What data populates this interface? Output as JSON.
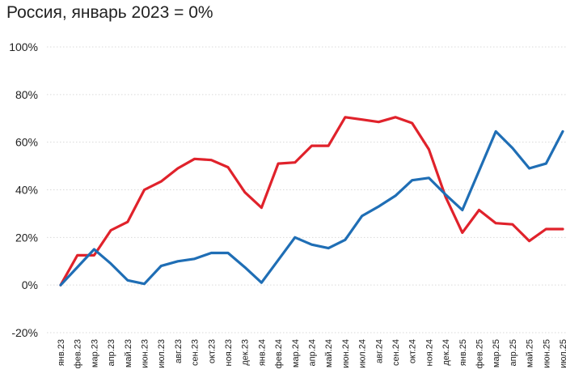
{
  "chart_data": {
    "type": "line",
    "title": "Россия, январь 2023 = 0%",
    "xlabel": "",
    "ylabel": "",
    "ylim": [
      -20,
      100
    ],
    "yticks": [
      -20,
      0,
      20,
      40,
      60,
      80,
      100
    ],
    "ytick_labels": [
      "-20%",
      "0%",
      "20%",
      "40%",
      "60%",
      "80%",
      "100%"
    ],
    "grid": true,
    "legend": "none",
    "categories": [
      "янв.23",
      "фев.23",
      "мар.23",
      "апр.23",
      "май.23",
      "июн.23",
      "июл.23",
      "авг.23",
      "сен.23",
      "окт.23",
      "ноя.23",
      "дек.23",
      "янв.24",
      "фев.24",
      "мар.24",
      "апр.24",
      "май.24",
      "июн.24",
      "июл.24",
      "авг.24",
      "сен.24",
      "окт.24",
      "ноя.24",
      "дек.24",
      "янв.25",
      "фев.25",
      "мар.25",
      "апр.25",
      "май.25",
      "июн.25",
      "июл.25"
    ],
    "series": [
      {
        "color": "#e0222b",
        "values": [
          0,
          12.5,
          12.5,
          23,
          26.5,
          40,
          43.5,
          49,
          53,
          52.5,
          49.5,
          39,
          32.5,
          51,
          51.5,
          58.5,
          58.5,
          70.5,
          69.5,
          68.5,
          70.5,
          68,
          57,
          37,
          22,
          31.5,
          26,
          25.5,
          18.5,
          23.5,
          23.5
        ]
      },
      {
        "color": "#1f6eb5",
        "values": [
          0,
          7.5,
          15,
          9,
          2,
          0.5,
          8,
          10,
          11,
          13.5,
          13.5,
          7.5,
          1,
          10.5,
          20,
          17,
          15.5,
          19,
          29,
          33,
          37.5,
          44,
          45,
          38,
          31.5,
          48,
          64.5,
          57.5,
          49,
          51,
          64.5
        ]
      }
    ]
  }
}
